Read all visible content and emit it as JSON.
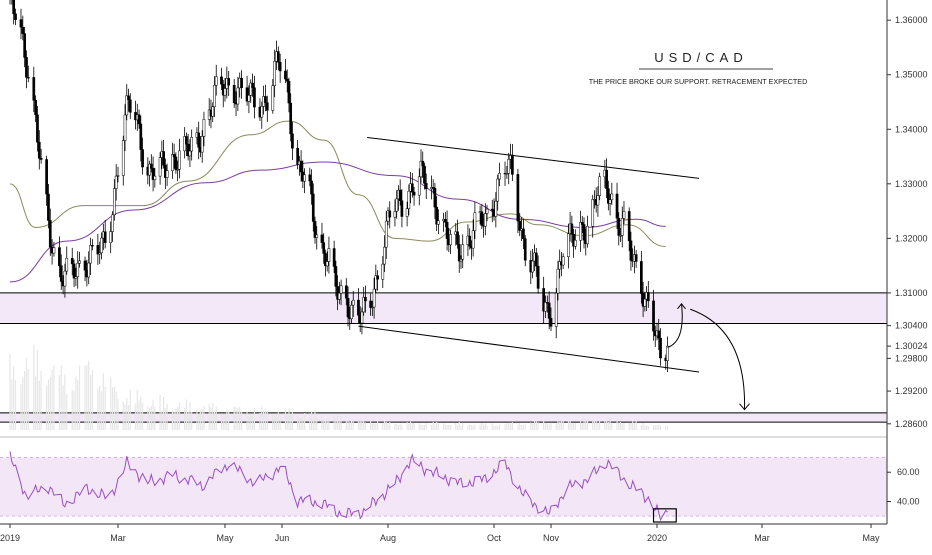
{
  "chart_data": [
    {
      "type": "candlestick",
      "instrument": "USD/CAD",
      "title": "USD/CAD",
      "subtitle": "THE PRICE BROKE OUR SUPPORT. RETRACEMENT EXPECTED",
      "xlabel": "",
      "ylabel": "",
      "x_tick_labels": [
        "2019",
        "Mar",
        "May",
        "Jun",
        "Aug",
        "Oct",
        "Nov",
        "2020",
        "Mar",
        "May"
      ],
      "x_tick_dates": [
        "2019-01-01",
        "2019-03-01",
        "2019-05-01",
        "2019-06-01",
        "2019-08-01",
        "2019-10-01",
        "2019-11-01",
        "2020-01-01",
        "2020-03-01",
        "2020-05-01"
      ],
      "y_tick_labels": [
        "1.36000",
        "1.35000",
        "1.34000",
        "1.33000",
        "1.32000",
        "1.31000",
        "1.30400",
        "1.30024",
        "1.29800",
        "1.29200",
        "1.28600"
      ],
      "ylim": [
        1.2845,
        1.3637
      ],
      "last_price": 1.30024,
      "candle_up_color": "#ffffff",
      "candle_down_color": "#000000",
      "candle_border_color": "#000000",
      "grid": false,
      "key_points": [
        {
          "date": "2019-01-01",
          "close": 1.363
        },
        {
          "date": "2019-01-31",
          "close": 1.313
        },
        {
          "date": "2019-02-20",
          "close": 1.318
        },
        {
          "date": "2019-03-08",
          "close": 1.344
        },
        {
          "date": "2019-03-20",
          "close": 1.332
        },
        {
          "date": "2019-04-10",
          "close": 1.336
        },
        {
          "date": "2019-05-01",
          "close": 1.348
        },
        {
          "date": "2019-05-22",
          "close": 1.345
        },
        {
          "date": "2019-05-31",
          "close": 1.352
        },
        {
          "date": "2019-06-12",
          "close": 1.332
        },
        {
          "date": "2019-06-25",
          "close": 1.318
        },
        {
          "date": "2019-07-05",
          "close": 1.309
        },
        {
          "date": "2019-07-18",
          "close": 1.306
        },
        {
          "date": "2019-08-06",
          "close": 1.326
        },
        {
          "date": "2019-08-20",
          "close": 1.331
        },
        {
          "date": "2019-09-10",
          "close": 1.318
        },
        {
          "date": "2019-09-25",
          "close": 1.323
        },
        {
          "date": "2019-10-08",
          "close": 1.333
        },
        {
          "date": "2019-10-20",
          "close": 1.317
        },
        {
          "date": "2019-10-30",
          "close": 1.306
        },
        {
          "date": "2019-11-10",
          "close": 1.319
        },
        {
          "date": "2019-11-20",
          "close": 1.322
        },
        {
          "date": "2019-12-02",
          "close": 1.33
        },
        {
          "date": "2019-12-12",
          "close": 1.322
        },
        {
          "date": "2019-12-20",
          "close": 1.315
        },
        {
          "date": "2019-12-27",
          "close": 1.308
        },
        {
          "date": "2020-01-03",
          "close": 1.2985
        },
        {
          "date": "2020-01-07",
          "close": 1.3002
        }
      ],
      "moving_averages": [
        {
          "color": "#8b8b5a",
          "points": [
            {
              "date": "2019-01-01",
              "value": 1.33
            },
            {
              "date": "2019-01-15",
              "value": 1.322
            },
            {
              "date": "2019-02-10",
              "value": 1.326
            },
            {
              "date": "2019-03-15",
              "value": 1.326
            },
            {
              "date": "2019-04-10",
              "value": 1.3305
            },
            {
              "date": "2019-05-15",
              "value": 1.339
            },
            {
              "date": "2019-06-05",
              "value": 1.3415
            },
            {
              "date": "2019-06-25",
              "value": 1.338
            },
            {
              "date": "2019-07-15",
              "value": 1.328
            },
            {
              "date": "2019-08-05",
              "value": 1.32
            },
            {
              "date": "2019-08-25",
              "value": 1.3195
            },
            {
              "date": "2019-09-15",
              "value": 1.323
            },
            {
              "date": "2019-10-10",
              "value": 1.3245
            },
            {
              "date": "2019-10-25",
              "value": 1.3225
            },
            {
              "date": "2019-11-20",
              "value": 1.3205
            },
            {
              "date": "2019-12-15",
              "value": 1.3225
            },
            {
              "date": "2020-01-06",
              "value": 1.3185
            }
          ]
        },
        {
          "color": "#7b3fa0",
          "points": [
            {
              "date": "2019-01-01",
              "value": 1.312
            },
            {
              "date": "2019-02-01",
              "value": 1.3195
            },
            {
              "date": "2019-03-10",
              "value": 1.3252
            },
            {
              "date": "2019-04-20",
              "value": 1.3302
            },
            {
              "date": "2019-05-20",
              "value": 1.3325
            },
            {
              "date": "2019-06-25",
              "value": 1.334
            },
            {
              "date": "2019-08-05",
              "value": 1.3315
            },
            {
              "date": "2019-09-10",
              "value": 1.3272
            },
            {
              "date": "2019-10-15",
              "value": 1.3235
            },
            {
              "date": "2019-11-20",
              "value": 1.322
            },
            {
              "date": "2019-12-20",
              "value": 1.3235
            },
            {
              "date": "2020-01-06",
              "value": 1.3222
            }
          ]
        }
      ],
      "annotations": {
        "support_zone": {
          "from": 1.3044,
          "to": 1.31,
          "fill": "#f3e8f8"
        },
        "target_zone": {
          "from": 1.2863,
          "to": 1.288,
          "fill": "#f3e8f8"
        },
        "channel_upper": [
          {
            "date": "2019-07-20",
            "price": 1.3385
          },
          {
            "date": "2020-01-25",
            "price": 1.331
          }
        ],
        "channel_lower": [
          {
            "date": "2019-07-15",
            "price": 1.3039
          },
          {
            "date": "2020-01-25",
            "price": 1.2955
          }
        ],
        "arrow_up": [
          {
            "date": "2020-01-07",
            "price": 1.3
          },
          {
            "date": "2020-01-15",
            "price": 1.308
          }
        ],
        "arrow_down": [
          {
            "date": "2020-01-20",
            "price": 1.307
          },
          {
            "date": "2020-02-20",
            "price": 1.2886
          }
        ]
      }
    },
    {
      "type": "bar",
      "series": [
        {
          "values_relative": [
            0.85,
            0.95,
            0.7,
            0.88,
            0.5,
            0.35,
            0.25,
            0.1,
            0.08,
            0.15,
            0.05
          ]
        }
      ],
      "x_dates": [
        "2019-01-01",
        "2019-01-15",
        "2019-02-01",
        "2019-02-15",
        "2019-03-01",
        "2019-04-01",
        "2019-06-01",
        "2019-08-01",
        "2019-10-01",
        "2019-12-01",
        "2020-01-07"
      ],
      "bar_color": "#e6e6e6"
    },
    {
      "type": "line",
      "y_tick_labels": [
        "60.00",
        "40.00"
      ],
      "ylim": [
        26,
        82
      ],
      "band": [
        30,
        70
      ],
      "band_fill": "#f2e6f7",
      "line_color": "#9a4fc0",
      "points": [
        {
          "date": "2019-01-01",
          "value": 70
        },
        {
          "date": "2019-01-10",
          "value": 44
        },
        {
          "date": "2019-01-22",
          "value": 50
        },
        {
          "date": "2019-01-31",
          "value": 38
        },
        {
          "date": "2019-02-12",
          "value": 49
        },
        {
          "date": "2019-02-24",
          "value": 42
        },
        {
          "date": "2019-03-06",
          "value": 66
        },
        {
          "date": "2019-03-18",
          "value": 53
        },
        {
          "date": "2019-04-02",
          "value": 58
        },
        {
          "date": "2019-04-18",
          "value": 51
        },
        {
          "date": "2019-05-03",
          "value": 66
        },
        {
          "date": "2019-05-18",
          "value": 52
        },
        {
          "date": "2019-06-01",
          "value": 64
        },
        {
          "date": "2019-06-10",
          "value": 41
        },
        {
          "date": "2019-06-24",
          "value": 39
        },
        {
          "date": "2019-07-06",
          "value": 31
        },
        {
          "date": "2019-07-18",
          "value": 33
        },
        {
          "date": "2019-08-05",
          "value": 52
        },
        {
          "date": "2019-08-14",
          "value": 68
        },
        {
          "date": "2019-08-26",
          "value": 60
        },
        {
          "date": "2019-09-12",
          "value": 52
        },
        {
          "date": "2019-09-25",
          "value": 55
        },
        {
          "date": "2019-10-07",
          "value": 66
        },
        {
          "date": "2019-10-17",
          "value": 44
        },
        {
          "date": "2019-10-31",
          "value": 31
        },
        {
          "date": "2019-11-10",
          "value": 49
        },
        {
          "date": "2019-11-22",
          "value": 55
        },
        {
          "date": "2019-12-03",
          "value": 67
        },
        {
          "date": "2019-12-15",
          "value": 53
        },
        {
          "date": "2019-12-27",
          "value": 42
        },
        {
          "date": "2020-01-03",
          "value": 29
        },
        {
          "date": "2020-01-07",
          "value": 33
        }
      ],
      "highlight_box": {
        "from_date": "2019-12-30",
        "to_date": "2020-01-12",
        "from": 26,
        "to": 35
      }
    }
  ]
}
